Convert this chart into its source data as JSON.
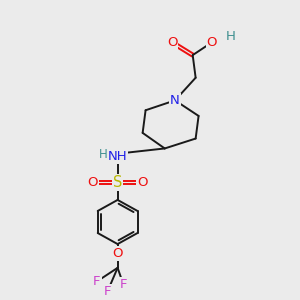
{
  "bg_color": "#ebebeb",
  "bond_color": "#1a1a1a",
  "colors": {
    "N": "#2020e8",
    "O": "#ee1010",
    "S": "#b8b800",
    "F": "#cc44cc",
    "H": "#409090",
    "C": "#1a1a1a"
  },
  "font_size": 8.5,
  "fig_size": [
    3.0,
    3.0
  ],
  "dpi": 100,
  "lw": 1.4
}
